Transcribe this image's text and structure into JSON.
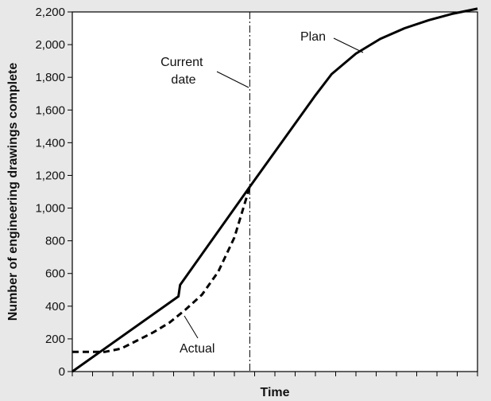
{
  "chart_data": {
    "type": "line",
    "title": "",
    "xlabel": "Time",
    "ylabel": "Number of engineering drawings complete",
    "ylim": [
      0,
      2200
    ],
    "yticks": [
      "0",
      "200",
      "400",
      "600",
      "800",
      "1,000",
      "1,200",
      "1,400",
      "1,600",
      "1,800",
      "2,000",
      "2,200"
    ],
    "xlim": [
      0,
      100
    ],
    "grid": false,
    "series": [
      {
        "name": "Plan",
        "style": "solid",
        "color": "#000000",
        "x": [
          0,
          26.2,
          26.6,
          43.8,
          60,
          64,
          70,
          76,
          82,
          88,
          94,
          100
        ],
        "y": [
          0,
          460,
          530,
          1130,
          1690,
          1820,
          1945,
          2035,
          2100,
          2150,
          2190,
          2220
        ]
      },
      {
        "name": "Actual",
        "style": "dashed",
        "color": "#000000",
        "x": [
          0,
          8,
          12,
          16,
          20,
          24,
          28,
          32,
          36,
          40,
          43.8
        ],
        "y": [
          120,
          120,
          140,
          190,
          240,
          300,
          380,
          470,
          610,
          820,
          1130
        ]
      }
    ],
    "current_date_x": 43.8,
    "annotations": [
      {
        "id": "plan",
        "text": "Plan"
      },
      {
        "id": "current-date",
        "lines": [
          "Current",
          "date"
        ]
      },
      {
        "id": "actual",
        "text": "Actual"
      }
    ]
  }
}
